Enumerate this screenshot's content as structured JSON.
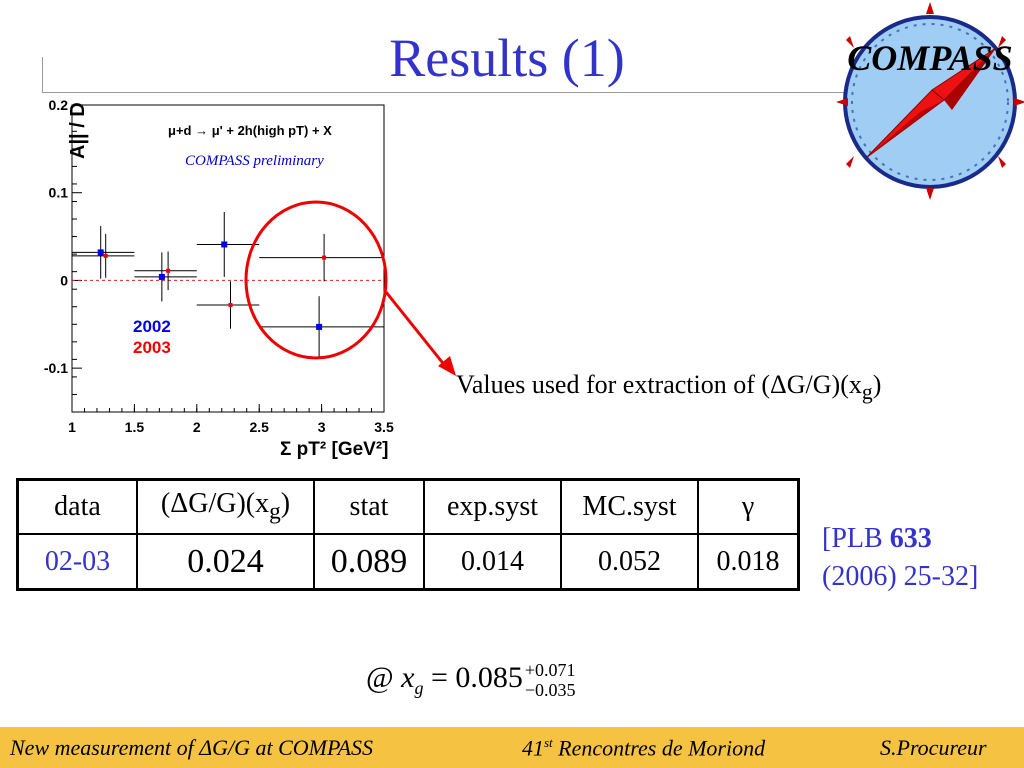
{
  "title": "Results (1)",
  "logo": {
    "text": "COMPASS",
    "icon": "compass-icon"
  },
  "chart_data": {
    "type": "scatter",
    "annotation_reaction": "μ+d → μ' + 2h(high pT) + X",
    "annotation_label": "COMPASS preliminary",
    "ylabel": "A|| / D",
    "xlabel": "Σ pT² [GeV²]",
    "xlim": [
      1,
      3.5
    ],
    "ylim": [
      -0.15,
      0.2
    ],
    "x_ticks": [
      "1",
      "1.5",
      "2",
      "2.5",
      "3",
      "3.5"
    ],
    "y_ticks": [
      "0.2",
      "0.1",
      "0",
      "-0.1"
    ],
    "reference_line": 0,
    "highlight_circle": "around high-pT bin (x ≈ 3)",
    "series": [
      {
        "name": "2002",
        "color": "#0000ee",
        "points": [
          {
            "x": 1.23,
            "y": 0.032,
            "xerr_lo": 0.23,
            "xerr_hi": 0.27,
            "yerr": 0.03
          },
          {
            "x": 1.72,
            "y": 0.004,
            "xerr_lo": 0.22,
            "xerr_hi": 0.28,
            "yerr": 0.028
          },
          {
            "x": 2.22,
            "y": 0.041,
            "xerr_lo": 0.22,
            "xerr_hi": 0.28,
            "yerr": 0.037
          },
          {
            "x": 2.98,
            "y": -0.053,
            "xerr_lo": 0.48,
            "xerr_hi": 0.52,
            "yerr": 0.035
          }
        ]
      },
      {
        "name": "2003",
        "color": "#ee0000",
        "points": [
          {
            "x": 1.27,
            "y": 0.028,
            "xerr_lo": 0.27,
            "xerr_hi": 0.23,
            "yerr": 0.025
          },
          {
            "x": 1.77,
            "y": 0.011,
            "xerr_lo": 0.27,
            "xerr_hi": 0.23,
            "yerr": 0.022
          },
          {
            "x": 2.27,
            "y": -0.028,
            "xerr_lo": 0.27,
            "xerr_hi": 0.23,
            "yerr": 0.027
          },
          {
            "x": 3.02,
            "y": 0.026,
            "xerr_lo": 0.52,
            "xerr_hi": 0.48,
            "yerr": 0.027
          }
        ]
      }
    ]
  },
  "note": "Values used for extraction of (ΔG/G)(x",
  "note_sub": "g",
  "note_end": ")",
  "table": {
    "headers": [
      "data",
      "(ΔG/G)(x",
      "stat",
      "exp.syst",
      "MC.syst",
      "γ"
    ],
    "header_sub": "g",
    "header_end": ")",
    "row": [
      "02-03",
      "0.024",
      "0.089",
      "0.014",
      "0.052",
      "0.018"
    ]
  },
  "reference": {
    "pre": "[PLB ",
    "volume": "633",
    "line2": "(2006) 25-32]"
  },
  "formula": {
    "at": "@",
    "var": "x",
    "sub": "g",
    "eq": "=",
    "value": "0.085",
    "plus": "+0.071",
    "minus": "−0.035"
  },
  "footer": {
    "left": "New measurement of ΔG/G at COMPASS",
    "mid_num": "41",
    "mid_sup": "st",
    "mid_text": " Rencontres de Moriond",
    "right": "S.Procureur"
  }
}
